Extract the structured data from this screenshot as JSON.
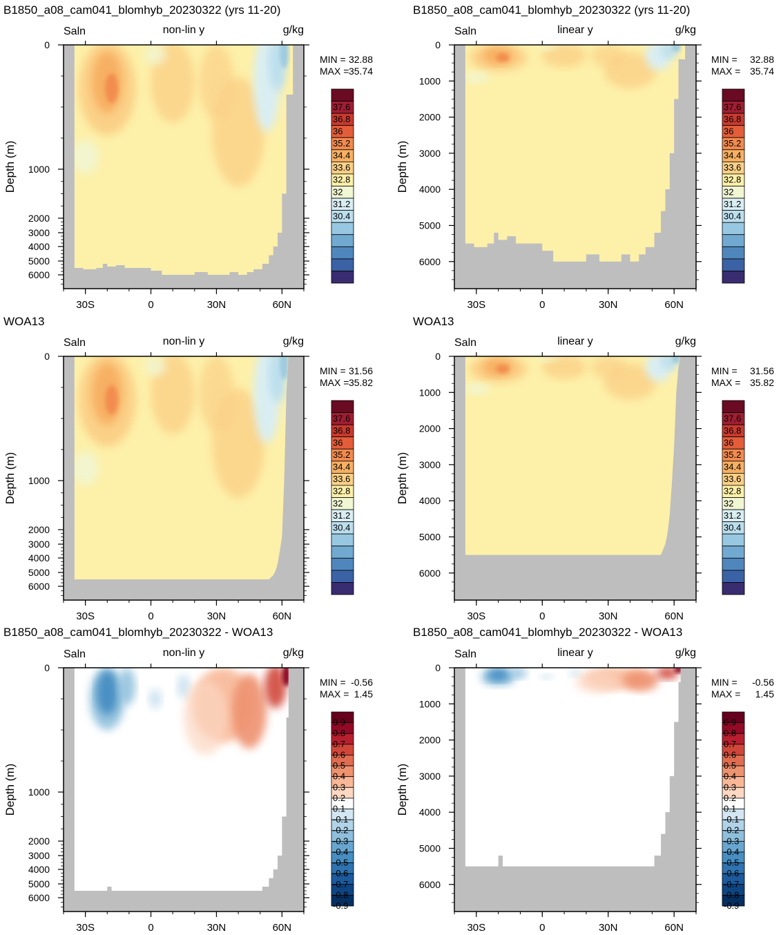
{
  "chart_data": [
    {
      "type": "heatmap",
      "title": "B1850_a08_cam041_blomhyb_20230322 (yrs 11-20)",
      "variable": "Saln",
      "scale_label": "non-lin y",
      "units": "g/kg",
      "ylabel": "Depth (m)",
      "xtick_labels": [
        "30S",
        "0",
        "30N",
        "60N"
      ],
      "ytick_labels": [
        "0",
        "1000",
        "2000",
        "3000",
        "4000",
        "5000",
        "6000"
      ],
      "min_label": "MIN = ",
      "min_value": "32.88",
      "max_label": "MAX = ",
      "max_value": "35.74",
      "colorbar_labels": [
        "37.6",
        "36.8",
        "36",
        "35.2",
        "34.4",
        "33.6",
        "32.8",
        "32",
        "31.2",
        "30.4"
      ]
    },
    {
      "type": "heatmap",
      "title": "B1850_a08_cam041_blomhyb_20230322 (yrs 11-20)",
      "variable": "Saln",
      "scale_label": "linear y",
      "units": "g/kg",
      "ylabel": "Depth (m)",
      "xtick_labels": [
        "30S",
        "0",
        "30N",
        "60N"
      ],
      "ytick_labels": [
        "0",
        "1000",
        "2000",
        "3000",
        "4000",
        "5000",
        "6000"
      ],
      "min_label": "MIN = ",
      "min_value": "32.88",
      "max_label": "MAX = ",
      "max_value": "35.74",
      "colorbar_labels": [
        "37.6",
        "36.8",
        "36",
        "35.2",
        "34.4",
        "33.6",
        "32.8",
        "32",
        "31.2",
        "30.4"
      ]
    },
    {
      "type": "heatmap",
      "title": "WOA13",
      "variable": "Saln",
      "scale_label": "non-lin y",
      "units": "g/kg",
      "ylabel": "Depth (m)",
      "xtick_labels": [
        "30S",
        "0",
        "30N",
        "60N"
      ],
      "ytick_labels": [
        "0",
        "1000",
        "2000",
        "3000",
        "4000",
        "5000",
        "6000"
      ],
      "min_label": "MIN = ",
      "min_value": "31.56",
      "max_label": "MAX = ",
      "max_value": "35.82",
      "colorbar_labels": [
        "37.6",
        "36.8",
        "36",
        "35.2",
        "34.4",
        "33.6",
        "32.8",
        "32",
        "31.2",
        "30.4"
      ]
    },
    {
      "type": "heatmap",
      "title": "WOA13",
      "variable": "Saln",
      "scale_label": "linear y",
      "units": "g/kg",
      "ylabel": "Depth (m)",
      "xtick_labels": [
        "30S",
        "0",
        "30N",
        "60N"
      ],
      "ytick_labels": [
        "0",
        "1000",
        "2000",
        "3000",
        "4000",
        "5000",
        "6000"
      ],
      "min_label": "MIN = ",
      "min_value": "31.56",
      "max_label": "MAX = ",
      "max_value": "35.82",
      "colorbar_labels": [
        "37.6",
        "36.8",
        "36",
        "35.2",
        "34.4",
        "33.6",
        "32.8",
        "32",
        "31.2",
        "30.4"
      ]
    },
    {
      "type": "heatmap",
      "title": "B1850_a08_cam041_blomhyb_20230322 - WOA13",
      "variable": "Saln",
      "scale_label": "non-lin y",
      "units": "g/kg",
      "ylabel": "Depth (m)",
      "xtick_labels": [
        "30S",
        "0",
        "30N",
        "60N"
      ],
      "ytick_labels": [
        "0",
        "1000",
        "2000",
        "3000",
        "4000",
        "5000",
        "6000"
      ],
      "min_label": "MIN = ",
      "min_value": "-0.56",
      "max_label": "MAX = ",
      "max_value": "1.45",
      "colorbar_labels": [
        "0.9",
        "0.8",
        "0.7",
        "0.6",
        "0.5",
        "0.4",
        "0.3",
        "0.2",
        "0.1",
        "-0.1",
        "-0.2",
        "-0.3",
        "-0.4",
        "-0.5",
        "-0.6",
        "-0.7",
        "-0.8",
        "-0.9"
      ]
    },
    {
      "type": "heatmap",
      "title": "B1850_a08_cam041_blomhyb_20230322 - WOA13",
      "variable": "Saln",
      "scale_label": "linear y",
      "units": "g/kg",
      "ylabel": "Depth (m)",
      "xtick_labels": [
        "30S",
        "0",
        "30N",
        "60N"
      ],
      "ytick_labels": [
        "0",
        "1000",
        "2000",
        "3000",
        "4000",
        "5000",
        "6000"
      ],
      "min_label": "MIN = ",
      "min_value": "-0.56",
      "max_label": "MAX = ",
      "max_value": "1.45",
      "colorbar_labels": [
        "0.9",
        "0.8",
        "0.7",
        "0.6",
        "0.5",
        "0.4",
        "0.3",
        "0.2",
        "0.1",
        "-0.1",
        "-0.2",
        "-0.3",
        "-0.4",
        "-0.5",
        "-0.6",
        "-0.7",
        "-0.8",
        "-0.9"
      ]
    }
  ],
  "colors": {
    "land": "#bebebe",
    "salinity_palette": [
      "#6b0a23",
      "#a01e32",
      "#c93a2f",
      "#e45d3a",
      "#f28a4e",
      "#f7b063",
      "#fbd087",
      "#fdf0a9",
      "#f1f6d3",
      "#d9eef3",
      "#bcdfee",
      "#98c8e1",
      "#72a9d0",
      "#4f87bd",
      "#3a62a4",
      "#3a2c70"
    ],
    "diff_palette": [
      "#67001f",
      "#930a26",
      "#b81f2e",
      "#d0473a",
      "#e06d51",
      "#ee9270",
      "#f8b897",
      "#fcd7c2",
      "#ffffff",
      "#ffffff",
      "#d3e6f1",
      "#b1d3e7",
      "#8ebfdc",
      "#69a6cf",
      "#478ec2",
      "#2f73b1",
      "#1c5a9d",
      "#0e4582",
      "#053061"
    ]
  }
}
